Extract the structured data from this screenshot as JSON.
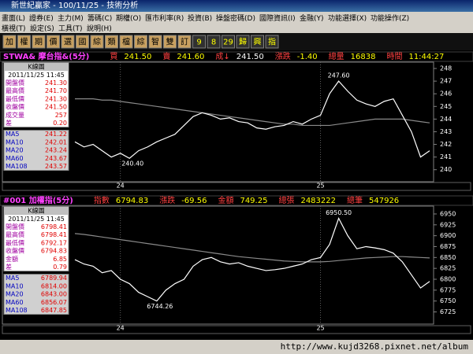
{
  "window": {
    "title": "新世紀贏家 - 100/11/25 - 技術分析",
    "menu": [
      "畫面(L)",
      "證券(E)",
      "主力(M)",
      "籌碼(C)",
      "期權(O)",
      "匯市利率(R)",
      "投資(B)",
      "操盤密碼(D)",
      "國際資訊(I)",
      "金融(Y)",
      "功能選擇(X)",
      "功能操作(Z)"
    ],
    "menu2": [
      "橫視(T)",
      "設定(S)",
      "工具(T)",
      "說明(H)"
    ],
    "toolbar": [
      "加",
      "權",
      "期",
      "價",
      "選",
      "國",
      "綜",
      "類",
      "檔",
      "綜",
      "智",
      "雙",
      "訂",
      "9",
      "8",
      "29",
      "歸",
      "興",
      "指"
    ],
    "status_url": "http://www.kujd3268.pixnet.net/album"
  },
  "panels": [
    {
      "header": {
        "symbol": "STWA& 摩台指&(5分)",
        "items": [
          {
            "label": "買",
            "value": "241.50"
          },
          {
            "label": "賣",
            "value": "241.60"
          },
          {
            "label": "成↓",
            "value": "241.50"
          },
          {
            "label": "漲跌",
            "value": "-1.40"
          },
          {
            "label": "總量",
            "value": "16838"
          },
          {
            "label": "時間",
            "value": "11:44:27"
          }
        ]
      },
      "info": {
        "title": "K線圖",
        "datetime": "2011/11/25 11:45",
        "rows": [
          {
            "label": "開盤價",
            "value": "241.30"
          },
          {
            "label": "最高價",
            "value": "241.70"
          },
          {
            "label": "最低價",
            "value": "241.30"
          },
          {
            "label": "收盤價",
            "value": "241.50"
          },
          {
            "label": "成交量",
            "value": "257"
          },
          {
            "label": "差",
            "value": "0.20"
          }
        ],
        "ma": [
          {
            "label": "MA5",
            "value": "241.22"
          },
          {
            "label": "MA10",
            "value": "242.01"
          },
          {
            "label": "MA20",
            "value": "243.24"
          },
          {
            "label": "MA60",
            "value": "243.67"
          },
          {
            "label": "MA108",
            "value": "243.57"
          }
        ]
      },
      "chart": {
        "type": "line",
        "ylim": [
          239.05,
          248.5
        ],
        "yticks": [
          248,
          247,
          246,
          245,
          244,
          243,
          242,
          241,
          240
        ],
        "high_label": "247.60",
        "low_label": "240.40",
        "categories": [
          null,
          null,
          null,
          null,
          null,
          "24",
          null,
          null,
          null,
          null,
          null,
          null,
          null,
          null,
          null,
          null,
          null,
          null,
          null,
          null,
          null,
          null,
          null,
          null,
          null,
          null,
          null,
          "25",
          null,
          null,
          null,
          null,
          null,
          null,
          null,
          null,
          null,
          null,
          null,
          null
        ],
        "series": [
          {
            "color": "#ffffff",
            "values": [
              242.2,
              241.8,
              242.0,
              241.5,
              241.0,
              241.3,
              240.9,
              241.5,
              241.8,
              242.2,
              242.5,
              242.8,
              243.5,
              244.2,
              244.5,
              244.3,
              244.0,
              244.1,
              243.8,
              243.7,
              243.3,
              243.2,
              243.4,
              243.5,
              243.8,
              243.6,
              244.0,
              244.3,
              246.0,
              247.0,
              246.2,
              245.5,
              245.2,
              245.0,
              245.4,
              245.6,
              244.3,
              243.0,
              241.0,
              241.5
            ]
          },
          {
            "color": "#8a8a8a",
            "values": [
              245.6,
              245.6,
              245.6,
              245.5,
              245.5,
              245.4,
              245.3,
              245.2,
              245.1,
              245.0,
              244.9,
              244.8,
              244.7,
              244.6,
              244.5,
              244.4,
              244.3,
              244.2,
              244.1,
              244.0,
              243.9,
              243.8,
              243.7,
              243.6,
              243.6,
              243.5,
              243.5,
              243.5,
              243.5,
              243.6,
              243.7,
              243.8,
              243.9,
              244.0,
              244.0,
              244.0,
              244.0,
              243.9,
              243.8,
              243.7
            ]
          }
        ]
      }
    },
    {
      "header": {
        "symbol": "#001 加權指(5分)",
        "items": [
          {
            "label": "指數",
            "value": "6794.83"
          },
          {
            "label": "漲跌",
            "value": "-69.56"
          },
          {
            "label": "金額",
            "value": "749.25"
          },
          {
            "label": "總張",
            "value": "2483222"
          },
          {
            "label": "總筆",
            "value": "547926"
          }
        ]
      },
      "info": {
        "title": "K線圖",
        "datetime": "2011/11/25 11:45",
        "rows": [
          {
            "label": "開盤價",
            "value": "6798.41"
          },
          {
            "label": "最高價",
            "value": "6798.41"
          },
          {
            "label": "最低價",
            "value": "6792.17"
          },
          {
            "label": "收盤價",
            "value": "6794.83"
          },
          {
            "label": "金額",
            "value": "6.85"
          },
          {
            "label": "差",
            "value": "0.79"
          }
        ],
        "ma": [
          {
            "label": "MA5",
            "value": "6789.94"
          },
          {
            "label": "MA10",
            "value": "6814.00"
          },
          {
            "label": "MA20",
            "value": "6843.00"
          },
          {
            "label": "MA60",
            "value": "6856.07"
          },
          {
            "label": "MA108",
            "value": "6847.85"
          }
        ]
      },
      "chart": {
        "type": "line",
        "ylim": [
          6697,
          6968
        ],
        "yticks": [
          6950,
          6925,
          6900,
          6875,
          6850,
          6825,
          6800,
          6775,
          6750,
          6725
        ],
        "high_label": "6950.50",
        "low_label": "6744.26",
        "categories": [
          null,
          null,
          null,
          null,
          null,
          "24",
          null,
          null,
          null,
          null,
          null,
          null,
          null,
          null,
          null,
          null,
          null,
          null,
          null,
          null,
          null,
          null,
          null,
          null,
          null,
          null,
          null,
          "25",
          null,
          null,
          null,
          null,
          null,
          null,
          null,
          null,
          null,
          null,
          null,
          null
        ],
        "series": [
          {
            "color": "#ffffff",
            "values": [
              6845,
              6835,
              6830,
              6815,
              6820,
              6800,
              6790,
              6770,
              6760,
              6750,
              6775,
              6790,
              6800,
              6830,
              6845,
              6850,
              6840,
              6835,
              6838,
              6830,
              6825,
              6820,
              6822,
              6825,
              6830,
              6835,
              6845,
              6850,
              6880,
              6940,
              6900,
              6870,
              6875,
              6872,
              6868,
              6860,
              6840,
              6810,
              6780,
              6795
            ]
          },
          {
            "color": "#8a8a8a",
            "values": [
              6905,
              6903,
              6900,
              6897,
              6894,
              6891,
              6888,
              6885,
              6882,
              6879,
              6876,
              6873,
              6870,
              6867,
              6864,
              6861,
              6858,
              6855,
              6852,
              6850,
              6848,
              6846,
              6844,
              6842,
              6841,
              6840,
              6840,
              6840,
              6841,
              6843,
              6845,
              6847,
              6849,
              6850,
              6851,
              6852,
              6852,
              6851,
              6850,
              6849
            ]
          }
        ]
      }
    }
  ]
}
